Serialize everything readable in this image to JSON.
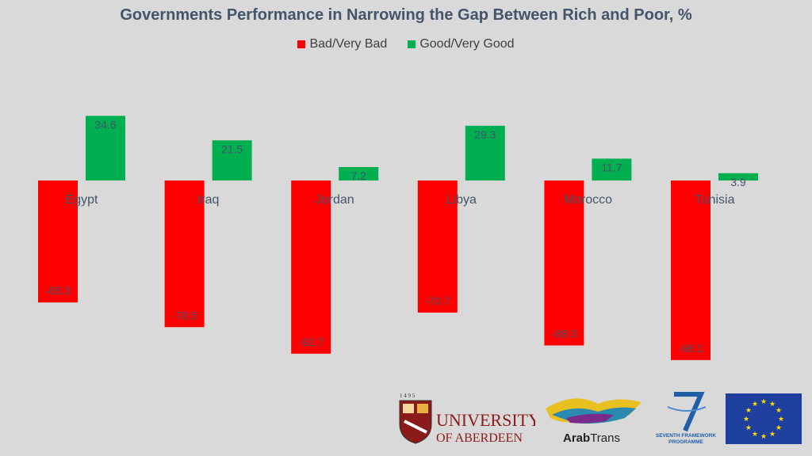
{
  "chart_data": {
    "type": "bar",
    "title": "Governments Performance in Narrowing the Gap Between Rich and Poor, %",
    "categories": [
      "Egypt",
      "Iraq",
      "Jordan",
      "Libya",
      "Morocco",
      "Tunisia"
    ],
    "series": [
      {
        "name": "Bad/Very Bad",
        "color": "#ff0000",
        "values": [
          -65.3,
          -78.5,
          -92.7,
          -70.7,
          -88.3,
          -96.1
        ]
      },
      {
        "name": "Good/Very Good",
        "color": "#00b050",
        "values": [
          34.6,
          21.5,
          7.2,
          29.3,
          11.7,
          3.9
        ]
      }
    ],
    "ylim": [
      -100,
      40
    ],
    "grid": false,
    "legend": "top-center"
  },
  "logos": {
    "aberdeen_year": "1 4 9 5",
    "aberdeen_line1": "UNIVERSITY",
    "aberdeen_line2": "OF ABERDEEN",
    "arabtrans_bold": "Arab",
    "arabtrans_light": "Trans",
    "fp7_line1": "SEVENTH FRAMEWORK",
    "fp7_line2": "PROGRAMME"
  }
}
